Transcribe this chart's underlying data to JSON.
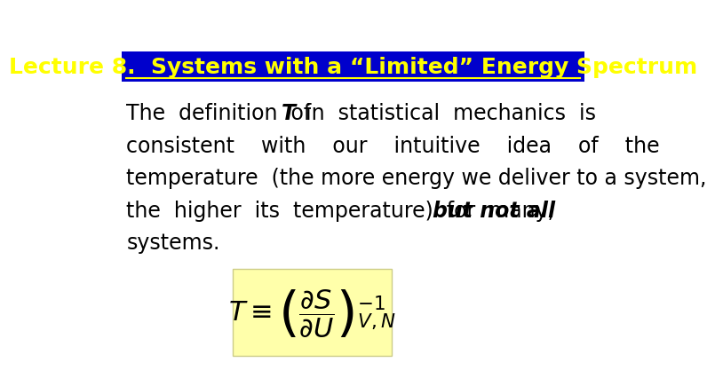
{
  "title": "Lecture 8.  Systems with a “Limited” Energy Spectrum",
  "title_bg": "#0000CC",
  "title_fg": "#FFFF00",
  "body_text_line1a": "The  definition  of  ",
  "body_text_bold_T": "T",
  "body_text_line1b": "  in  statistical  mechanics  is",
  "body_text_line2": "consistent    with    our    intuitive    idea    of    the",
  "body_text_line3": "temperature  (the more energy we deliver to a system,",
  "body_text_line4a": "the  higher  its  temperature)  for  many,  ",
  "body_text_bold2": "but not all",
  "body_text_line5": "systems.",
  "formula_bg": "#FFFFAA",
  "bg_color": "#FFFFFF",
  "body_fontsize": 17,
  "title_fontsize": 18,
  "formula_fontsize": 22
}
